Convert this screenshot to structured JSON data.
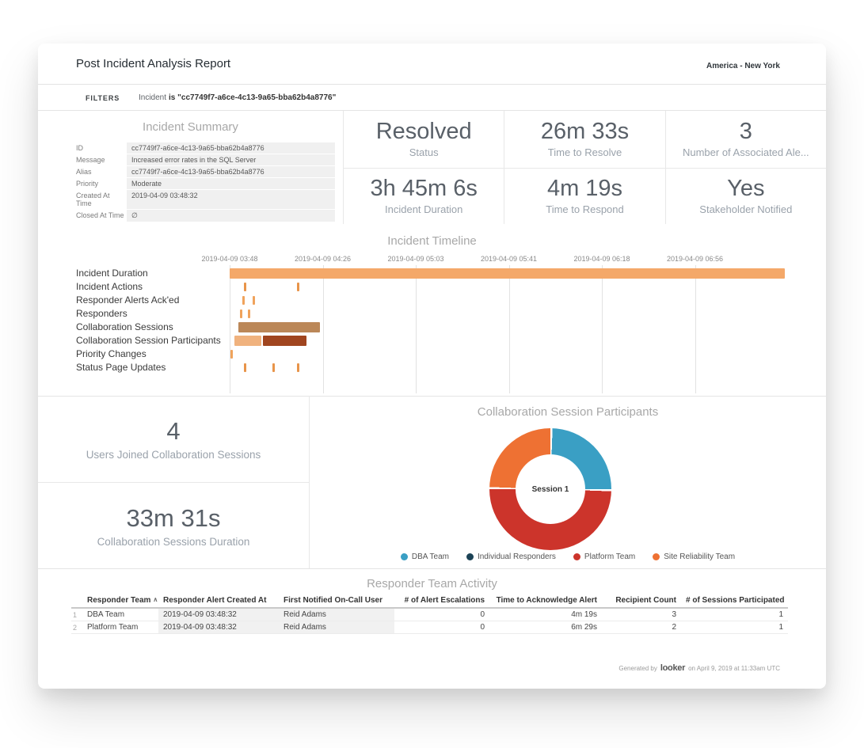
{
  "header": {
    "title": "Post Incident Analysis Report",
    "timezone": "America - New York"
  },
  "filters": {
    "label": "FILTERS",
    "field": "Incident",
    "condition": "is \"cc7749f7-a6ce-4c13-9a65-bba62b4a8776\""
  },
  "incident_summary": {
    "title": "Incident Summary",
    "fields": [
      {
        "label": "ID",
        "value": "cc7749f7-a6ce-4c13-9a65-bba62b4a8776"
      },
      {
        "label": "Message",
        "value": "Increased error rates in the SQL Server"
      },
      {
        "label": "Alias",
        "value": "cc7749f7-a6ce-4c13-9a65-bba62b4a8776"
      },
      {
        "label": "Priority",
        "value": "Moderate"
      },
      {
        "label": "Created At Time",
        "value": "2019-04-09 03:48:32"
      },
      {
        "label": "Closed At Time",
        "value": "∅"
      }
    ]
  },
  "kpis": [
    {
      "value": "Resolved",
      "label": "Status"
    },
    {
      "value": "26m 33s",
      "label": "Time to Resolve"
    },
    {
      "value": "3",
      "label": "Number of Associated Ale..."
    },
    {
      "value": "3h 45m 6s",
      "label": "Incident Duration"
    },
    {
      "value": "4m 19s",
      "label": "Time to Respond"
    },
    {
      "value": "Yes",
      "label": "Stakeholder Notified"
    }
  ],
  "session_kpis": [
    {
      "value": "4",
      "label": "Users Joined Collaboration Sessions"
    },
    {
      "value": "33m 31s",
      "label": "Collaboration Sessions Duration"
    }
  ],
  "chart_data": [
    {
      "type": "gantt",
      "title": "Incident Timeline",
      "x_ticks": [
        "2019-04-09 03:48",
        "2019-04-09 04:26",
        "2019-04-09 05:03",
        "2019-04-09 05:41",
        "2019-04-09 06:18",
        "2019-04-09 06:56"
      ],
      "rows": [
        {
          "label": "Incident Duration",
          "marks": [
            {
              "type": "bar",
              "start": 0,
              "end": 99.4,
              "color": "#f4a869"
            }
          ]
        },
        {
          "label": "Incident Actions",
          "marks": [
            {
              "type": "tick",
              "start": 2.6,
              "color": "#e8944a"
            },
            {
              "type": "tick",
              "start": 12.0,
              "color": "#e8944a"
            }
          ]
        },
        {
          "label": "Responder Alerts Ack'ed",
          "marks": [
            {
              "type": "tick",
              "start": 2.2,
              "color": "#f0a35c"
            },
            {
              "type": "tick",
              "start": 4.1,
              "color": "#f0a35c"
            }
          ]
        },
        {
          "label": "Responders",
          "marks": [
            {
              "type": "tick",
              "start": 1.8,
              "color": "#f0a35c"
            },
            {
              "type": "tick",
              "start": 3.2,
              "color": "#f0a35c"
            }
          ]
        },
        {
          "label": "Collaboration Sessions",
          "marks": [
            {
              "type": "bar",
              "start": 1.5,
              "end": 16.2,
              "color": "#bb8758"
            }
          ]
        },
        {
          "label": "Collaboration Session Participants",
          "marks": [
            {
              "type": "bar",
              "start": 0.9,
              "end": 5.7,
              "color": "#f0b27e"
            },
            {
              "type": "bar",
              "start": 5.9,
              "end": 13.8,
              "color": "#a0451f"
            }
          ]
        },
        {
          "label": "Priority Changes",
          "marks": [
            {
              "type": "tick",
              "start": 0.2,
              "color": "#f0a35c"
            }
          ]
        },
        {
          "label": "Status Page Updates",
          "marks": [
            {
              "type": "tick",
              "start": 2.6,
              "color": "#e8944a"
            },
            {
              "type": "tick",
              "start": 7.6,
              "color": "#e8944a"
            },
            {
              "type": "tick",
              "start": 12.0,
              "color": "#e8944a"
            }
          ]
        }
      ]
    },
    {
      "type": "donut",
      "title": "Collaboration Session Participants",
      "center_label": "Session 1",
      "legend_position": "bottom",
      "series": [
        {
          "name": "DBA Team",
          "value": 1,
          "color": "#3a9fc4"
        },
        {
          "name": "Individual Responders",
          "value": 0,
          "color": "#1c4356"
        },
        {
          "name": "Platform Team",
          "value": 2,
          "color": "#cc342b"
        },
        {
          "name": "Site Reliability Team",
          "value": 1,
          "color": "#ee7133"
        }
      ]
    }
  ],
  "table": {
    "title": "Responder Team Activity",
    "columns": [
      {
        "label": "Responder Team",
        "sorted": "asc",
        "align": "left"
      },
      {
        "label": "Responder Alert Created At",
        "align": "left"
      },
      {
        "label": "First Notified On-Call User",
        "align": "left"
      },
      {
        "label": "# of Alert Escalations",
        "align": "right"
      },
      {
        "label": "Time to Acknowledge Alert",
        "align": "right"
      },
      {
        "label": "Recipient Count",
        "align": "right"
      },
      {
        "label": "# of Sessions Participated",
        "align": "right"
      }
    ],
    "rows": [
      {
        "index": "1",
        "cells": [
          "DBA Team",
          "2019-04-09 03:48:32",
          "Reid Adams",
          "0",
          "4m 19s",
          "3",
          "1"
        ]
      },
      {
        "index": "2",
        "cells": [
          "Platform Team",
          "2019-04-09 03:48:32",
          "Reid Adams",
          "0",
          "6m 29s",
          "2",
          "1"
        ]
      }
    ]
  },
  "footer": {
    "prefix": "Generated by",
    "brand": "looker",
    "suffix": "on April 9, 2019 at 11:33am UTC"
  }
}
